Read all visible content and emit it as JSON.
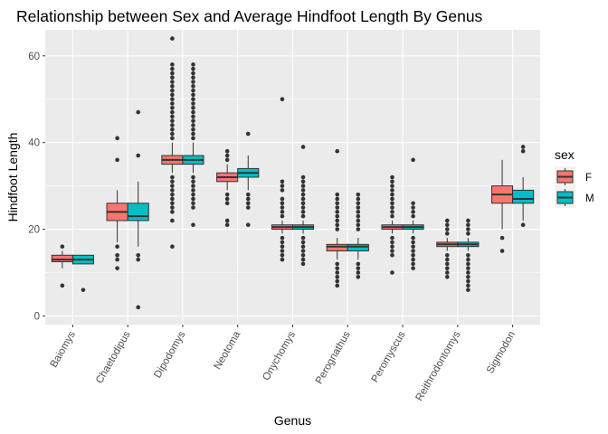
{
  "chart_data": {
    "type": "box",
    "title": "Relationship between Sex and Average Hindfoot Length By Genus",
    "xlabel": "Genus",
    "ylabel": "Hindfoot Length",
    "ylim": [
      -2,
      66
    ],
    "yticks": [
      0,
      20,
      40,
      60
    ],
    "grid": true,
    "legend_position": "right",
    "legend_title": "sex",
    "colors": {
      "F": "#F8766D",
      "M": "#00BFC4",
      "panel": "#EBEBEB",
      "grid": "#ffffff",
      "outline": "#333333"
    },
    "categories": [
      "Baiomys",
      "Chaetodipus",
      "Dipodomys",
      "Neotoma",
      "Onychomys",
      "Perognathus",
      "Peromyscus",
      "Reithrodontomys",
      "Sigmodon"
    ],
    "series": [
      {
        "name": "F",
        "boxes": [
          {
            "q1": 12.5,
            "median": 13,
            "q3": 14,
            "whisker_low": 11,
            "whisker_high": 15,
            "outliers": [
              7,
              16
            ]
          },
          {
            "q1": 22,
            "median": 24,
            "q3": 26,
            "whisker_low": 17,
            "whisker_high": 29,
            "outliers": [
              11,
              13,
              14,
              16,
              36,
              41
            ]
          },
          {
            "q1": 35,
            "median": 36,
            "q3": 37,
            "whisker_low": 33,
            "whisker_high": 40,
            "outliers": [
              16,
              22,
              24,
              25,
              26,
              27,
              28,
              29,
              30,
              31,
              32,
              41,
              42,
              43,
              44,
              45,
              46,
              47,
              48,
              49,
              50,
              51,
              52,
              53,
              54,
              55,
              56,
              57,
              58,
              64
            ]
          },
          {
            "q1": 31,
            "median": 32,
            "q3": 33,
            "whisker_low": 29,
            "whisker_high": 35,
            "outliers": [
              21,
              22,
              26,
              27,
              28,
              36,
              37,
              38
            ]
          },
          {
            "q1": 20,
            "median": 20.5,
            "q3": 21,
            "whisker_low": 19,
            "whisker_high": 22,
            "outliers": [
              13,
              14,
              15,
              16,
              17,
              18,
              23,
              24,
              25,
              26,
              27,
              29,
              30,
              31,
              50
            ]
          },
          {
            "q1": 15,
            "median": 16,
            "q3": 16.5,
            "whisker_low": 13,
            "whisker_high": 18,
            "outliers": [
              7,
              8,
              9,
              10,
              11,
              12,
              20,
              21,
              22,
              23,
              24,
              25,
              26,
              27,
              28,
              38
            ]
          },
          {
            "q1": 20,
            "median": 20.5,
            "q3": 21,
            "whisker_low": 19,
            "whisker_high": 22,
            "outliers": [
              10,
              14,
              15,
              16,
              17,
              18,
              23,
              24,
              25,
              26,
              27,
              28,
              29,
              30,
              31,
              32
            ]
          },
          {
            "q1": 16,
            "median": 16.5,
            "q3": 17,
            "whisker_low": 15,
            "whisker_high": 18,
            "outliers": [
              9,
              10,
              11,
              12,
              13,
              14,
              19,
              20,
              21,
              22
            ]
          },
          {
            "q1": 26,
            "median": 28,
            "q3": 30,
            "whisker_low": 20,
            "whisker_high": 36,
            "outliers": [
              15,
              18
            ]
          }
        ]
      },
      {
        "name": "M",
        "boxes": [
          {
            "q1": 12,
            "median": 13,
            "q3": 14,
            "whisker_low": 12,
            "whisker_high": 14,
            "outliers": [
              6
            ]
          },
          {
            "q1": 22,
            "median": 23,
            "q3": 26,
            "whisker_low": 16,
            "whisker_high": 31,
            "outliers": [
              2,
              13,
              14,
              37,
              47
            ]
          },
          {
            "q1": 35,
            "median": 36,
            "q3": 37,
            "whisker_low": 33,
            "whisker_high": 40,
            "outliers": [
              21,
              25,
              26,
              27,
              28,
              29,
              30,
              31,
              32,
              41,
              42,
              43,
              44,
              45,
              46,
              47,
              48,
              49,
              50,
              51,
              52,
              53,
              54,
              55,
              56,
              57,
              58
            ]
          },
          {
            "q1": 32,
            "median": 33,
            "q3": 34,
            "whisker_low": 29,
            "whisker_high": 37,
            "outliers": [
              21,
              25,
              26,
              27,
              28,
              42
            ]
          },
          {
            "q1": 20,
            "median": 20.5,
            "q3": 21,
            "whisker_low": 19,
            "whisker_high": 22,
            "outliers": [
              12,
              13,
              14,
              15,
              16,
              17,
              18,
              23,
              24,
              25,
              26,
              27,
              28,
              29,
              30,
              31,
              32,
              39
            ]
          },
          {
            "q1": 15,
            "median": 16,
            "q3": 16.5,
            "whisker_low": 13,
            "whisker_high": 18,
            "outliers": [
              9,
              10,
              11,
              12,
              20,
              21,
              22,
              23,
              24,
              25,
              26,
              27,
              28
            ]
          },
          {
            "q1": 20,
            "median": 20.5,
            "q3": 21,
            "whisker_low": 19,
            "whisker_high": 22,
            "outliers": [
              11,
              12,
              13,
              14,
              15,
              16,
              17,
              18,
              23,
              24,
              25,
              26,
              36
            ]
          },
          {
            "q1": 16,
            "median": 16.5,
            "q3": 17,
            "whisker_low": 15,
            "whisker_high": 18,
            "outliers": [
              6,
              7,
              8,
              9,
              10,
              11,
              12,
              13,
              14,
              19,
              20,
              21,
              22
            ]
          },
          {
            "q1": 26,
            "median": 27,
            "q3": 29,
            "whisker_low": 22,
            "whisker_high": 32,
            "outliers": [
              21,
              38,
              39
            ]
          }
        ]
      }
    ]
  }
}
